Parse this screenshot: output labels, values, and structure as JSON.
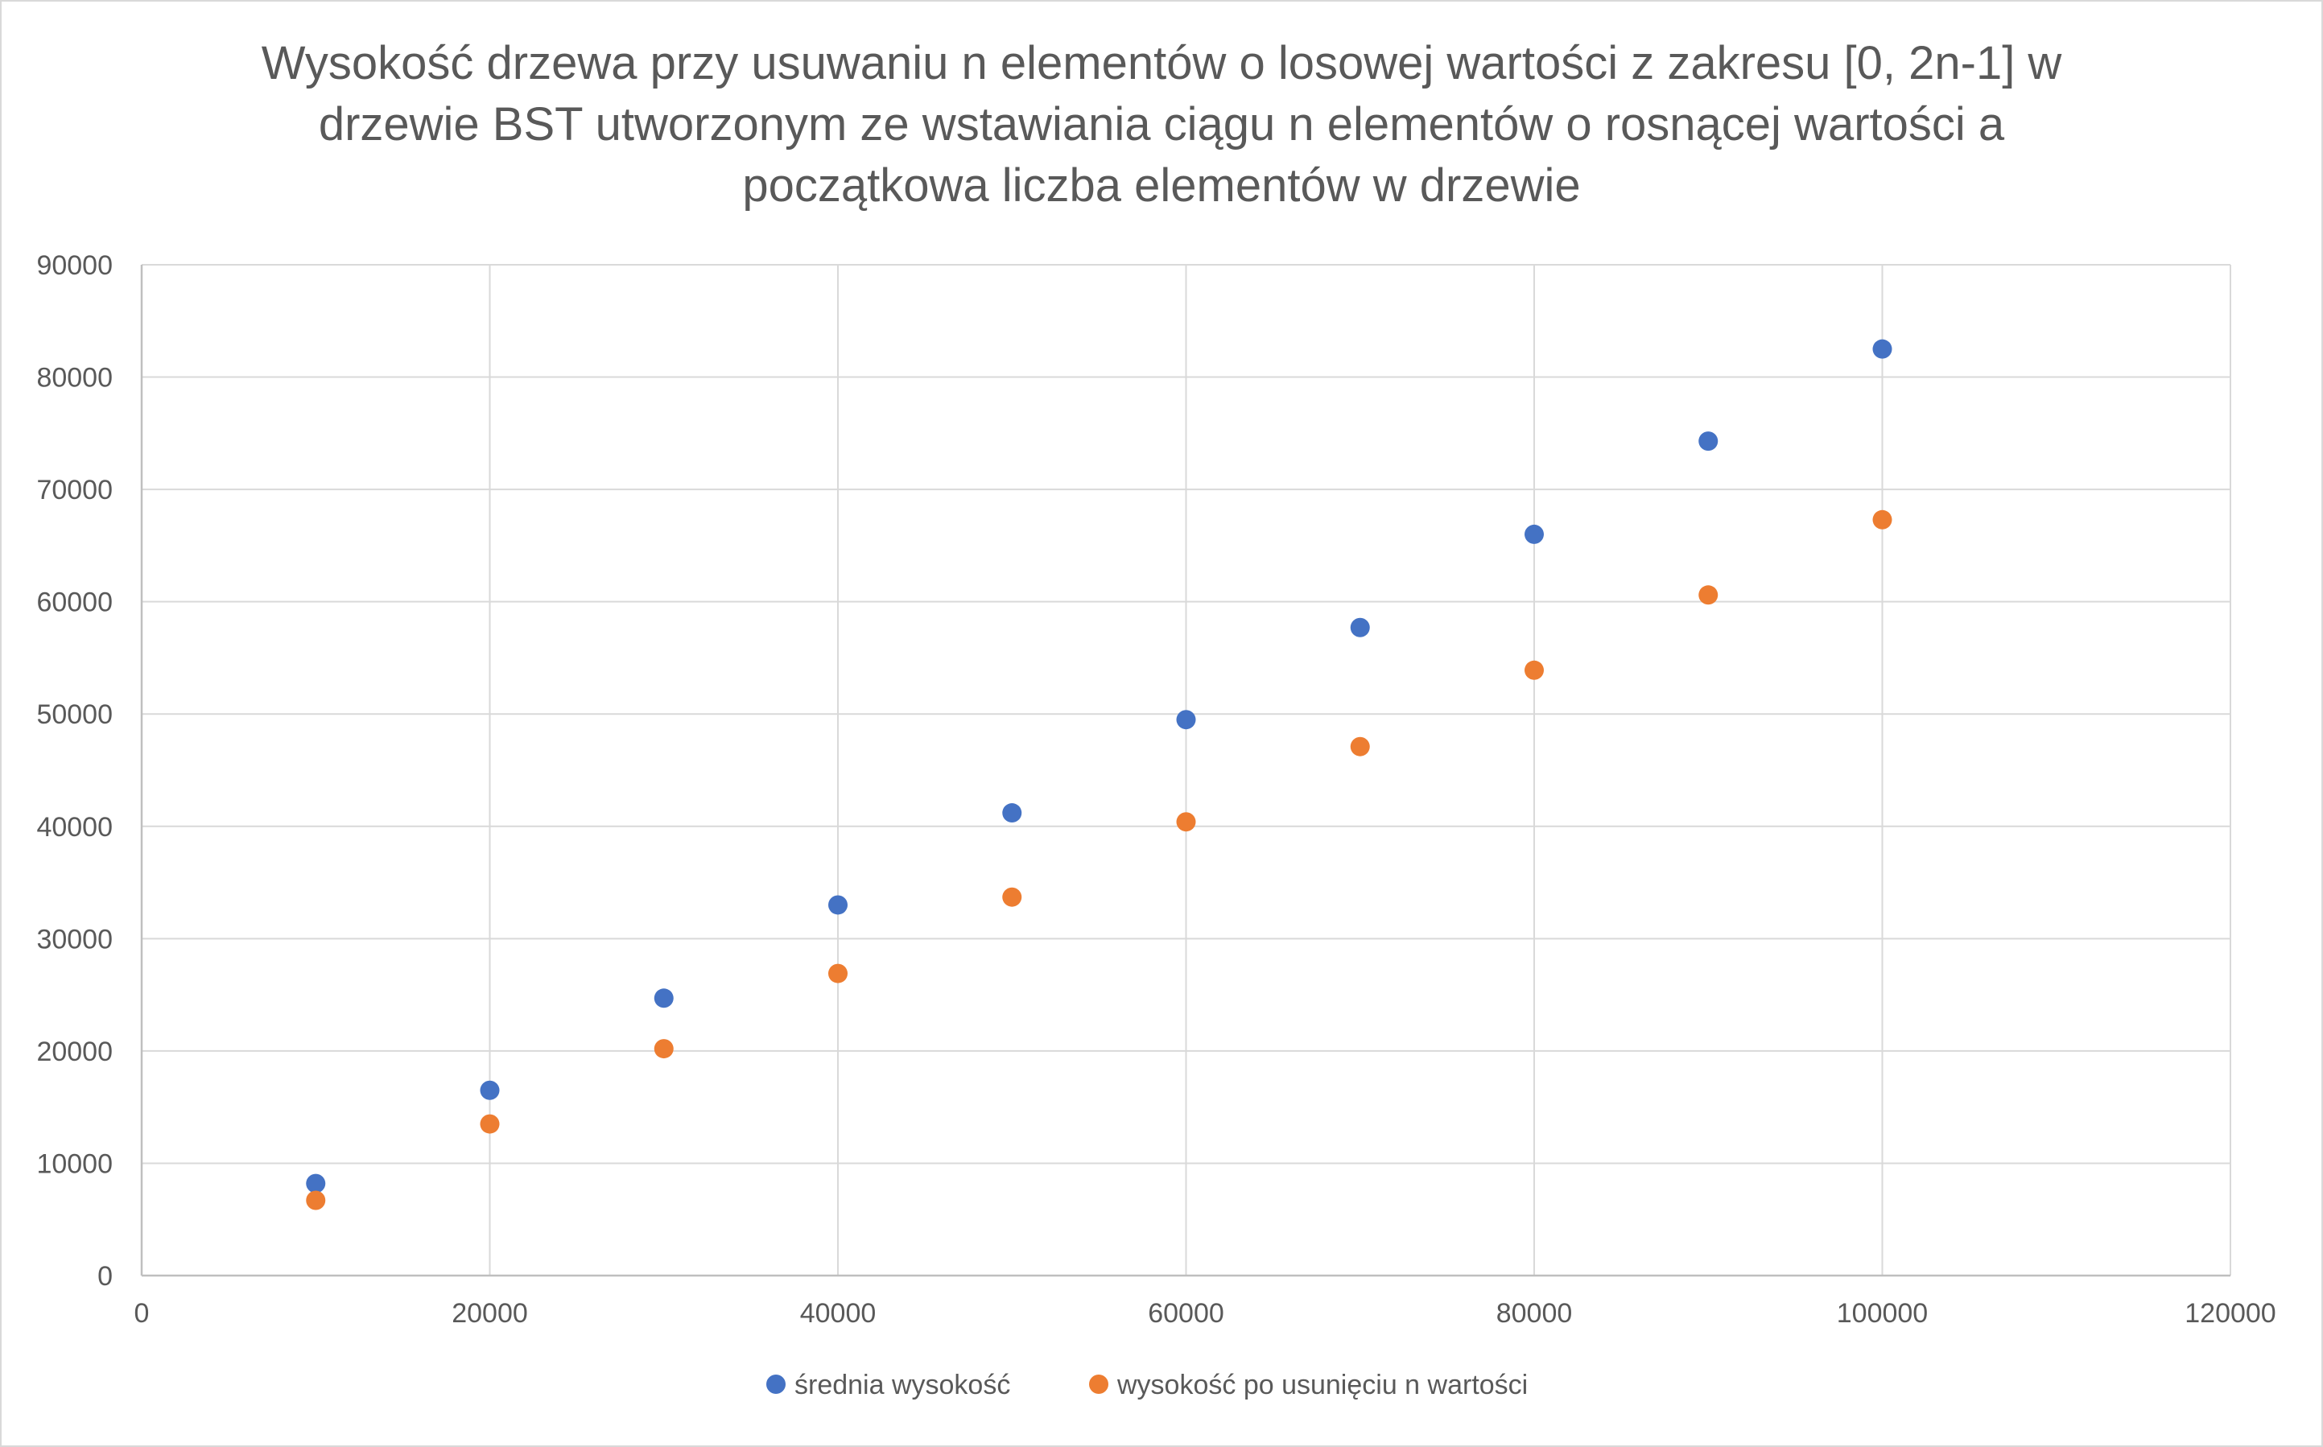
{
  "chart_data": {
    "type": "scatter",
    "title_lines": [
      "Wysokość drzewa przy usuwaniu n elementów o losowej wartości z zakresu [0, 2n-1] w",
      "drzewie BST utworzonym ze wstawiania ciągu n elementów o rosnącej wartości a",
      "początkowa liczba elementów w drzewie"
    ],
    "xlabel": "",
    "ylabel": "",
    "xlim": [
      0,
      120000
    ],
    "ylim": [
      0,
      90000
    ],
    "x_ticks": [
      "0",
      "20000",
      "40000",
      "60000",
      "80000",
      "100000",
      "120000"
    ],
    "y_ticks": [
      "0",
      "10000",
      "20000",
      "30000",
      "40000",
      "50000",
      "60000",
      "70000",
      "80000",
      "90000"
    ],
    "grid": true,
    "legend_position": "bottom",
    "series": [
      {
        "name": "średnia wysokość",
        "color": "#4472c4",
        "x": [
          10000,
          20000,
          30000,
          40000,
          50000,
          60000,
          70000,
          80000,
          90000,
          100000
        ],
        "y": [
          8200,
          16500,
          24700,
          33000,
          41200,
          49500,
          57700,
          66000,
          74300,
          82500
        ]
      },
      {
        "name": "wysokość po usunięciu n wartości",
        "color": "#ed7d31",
        "x": [
          10000,
          20000,
          30000,
          40000,
          50000,
          60000,
          70000,
          80000,
          90000,
          100000
        ],
        "y": [
          6700,
          13500,
          20200,
          26900,
          33700,
          40400,
          47100,
          53900,
          60600,
          67300
        ]
      }
    ]
  }
}
